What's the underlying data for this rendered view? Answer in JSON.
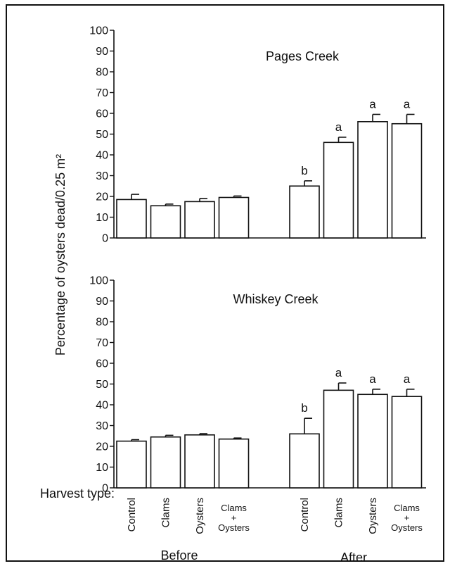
{
  "ylabel": "Percentage of oysters dead/0.25 m²",
  "harvest_label": "Harvest type:",
  "groups": [
    "Before",
    "After"
  ],
  "categories": [
    "Control",
    "Clams",
    "Oysters",
    "Clams\n+\nOysters"
  ],
  "chart_data": [
    {
      "type": "bar",
      "title": "Pages Creek",
      "ylim": [
        0,
        100
      ],
      "yticks": [
        0,
        10,
        20,
        30,
        40,
        50,
        60,
        70,
        80,
        90,
        100
      ],
      "series": [
        {
          "name": "Before",
          "values": [
            18.5,
            15.5,
            17.5,
            19.5
          ],
          "errors": [
            2.5,
            0.8,
            1.5,
            0.7
          ],
          "letters": [
            "",
            "",
            "",
            ""
          ]
        },
        {
          "name": "After",
          "values": [
            25,
            46,
            56,
            55
          ],
          "errors": [
            2.5,
            2.5,
            3.5,
            4.5
          ],
          "letters": [
            "b",
            "a",
            "a",
            "a"
          ]
        }
      ]
    },
    {
      "type": "bar",
      "title": "Whiskey Creek",
      "ylim": [
        0,
        100
      ],
      "yticks": [
        0,
        10,
        20,
        30,
        40,
        50,
        60,
        70,
        80,
        90,
        100
      ],
      "series": [
        {
          "name": "Before",
          "values": [
            22.5,
            24.5,
            25.5,
            23.5
          ],
          "errors": [
            0.7,
            0.8,
            0.6,
            0.5
          ],
          "letters": [
            "",
            "",
            "",
            ""
          ]
        },
        {
          "name": "After",
          "values": [
            26,
            47,
            45,
            44
          ],
          "errors": [
            7.5,
            3.5,
            2.5,
            3.5
          ],
          "letters": [
            "b",
            "a",
            "a",
            "a"
          ]
        }
      ]
    }
  ]
}
